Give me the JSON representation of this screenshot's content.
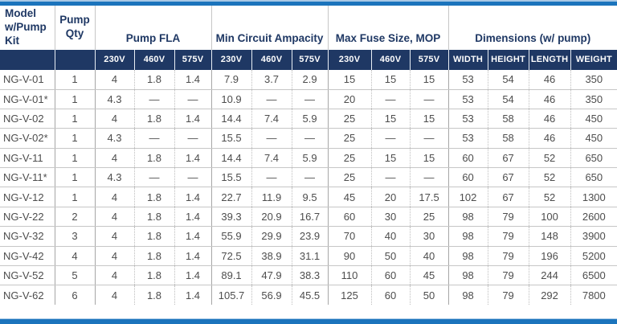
{
  "colors": {
    "header_navy": "#1f3864",
    "accent_bar_blue": "#1b74bc",
    "accent_bar_light": "#a9c9e6",
    "data_text": "#4d4d4d"
  },
  "table": {
    "header": {
      "model": "Model w/Pump Kit",
      "qty": "Pump Qty",
      "groups": [
        {
          "label": "Pump FLA",
          "sub": [
            "230V",
            "460V",
            "575V"
          ]
        },
        {
          "label": "Min Circuit Ampacity",
          "sub": [
            "230V",
            "460V",
            "575V"
          ]
        },
        {
          "label": "Max Fuse Size, MOP",
          "sub": [
            "230V",
            "460V",
            "575V"
          ]
        },
        {
          "label": "Dimensions (w/ pump)",
          "sub": [
            "WIDTH",
            "HEIGHT",
            "LENGTH",
            "WEIGHT"
          ]
        }
      ]
    },
    "rows": [
      {
        "model": "NG-V-01",
        "qty": "1",
        "fla": [
          "4",
          "1.8",
          "1.4"
        ],
        "mca": [
          "7.9",
          "3.7",
          "2.9"
        ],
        "mop": [
          "15",
          "15",
          "15"
        ],
        "dims": [
          "53",
          "54",
          "46",
          "350"
        ]
      },
      {
        "model": "NG-V-01*",
        "qty": "1",
        "fla": [
          "4.3",
          "—",
          "—"
        ],
        "mca": [
          "10.9",
          "—",
          "—"
        ],
        "mop": [
          "20",
          "—",
          "—"
        ],
        "dims": [
          "53",
          "54",
          "46",
          "350"
        ]
      },
      {
        "model": "NG-V-02",
        "qty": "1",
        "fla": [
          "4",
          "1.8",
          "1.4"
        ],
        "mca": [
          "14.4",
          "7.4",
          "5.9"
        ],
        "mop": [
          "25",
          "15",
          "15"
        ],
        "dims": [
          "53",
          "58",
          "46",
          "450"
        ]
      },
      {
        "model": "NG-V-02*",
        "qty": "1",
        "fla": [
          "4.3",
          "—",
          "—"
        ],
        "mca": [
          "15.5",
          "—",
          "—"
        ],
        "mop": [
          "25",
          "—",
          "—"
        ],
        "dims": [
          "53",
          "58",
          "46",
          "450"
        ]
      },
      {
        "model": "NG-V-11",
        "qty": "1",
        "fla": [
          "4",
          "1.8",
          "1.4"
        ],
        "mca": [
          "14.4",
          "7.4",
          "5.9"
        ],
        "mop": [
          "25",
          "15",
          "15"
        ],
        "dims": [
          "60",
          "67",
          "52",
          "650"
        ]
      },
      {
        "model": "NG-V-11*",
        "qty": "1",
        "fla": [
          "4.3",
          "—",
          "—"
        ],
        "mca": [
          "15.5",
          "—",
          "—"
        ],
        "mop": [
          "25",
          "—",
          "—"
        ],
        "dims": [
          "60",
          "67",
          "52",
          "650"
        ]
      },
      {
        "model": "NG-V-12",
        "qty": "1",
        "fla": [
          "4",
          "1.8",
          "1.4"
        ],
        "mca": [
          "22.7",
          "11.9",
          "9.5"
        ],
        "mop": [
          "45",
          "20",
          "17.5"
        ],
        "dims": [
          "102",
          "67",
          "52",
          "1300"
        ]
      },
      {
        "model": "NG-V-22",
        "qty": "2",
        "fla": [
          "4",
          "1.8",
          "1.4"
        ],
        "mca": [
          "39.3",
          "20.9",
          "16.7"
        ],
        "mop": [
          "60",
          "30",
          "25"
        ],
        "dims": [
          "98",
          "79",
          "100",
          "2600"
        ]
      },
      {
        "model": "NG-V-32",
        "qty": "3",
        "fla": [
          "4",
          "1.8",
          "1.4"
        ],
        "mca": [
          "55.9",
          "29.9",
          "23.9"
        ],
        "mop": [
          "70",
          "40",
          "30"
        ],
        "dims": [
          "98",
          "79",
          "148",
          "3900"
        ]
      },
      {
        "model": "NG-V-42",
        "qty": "4",
        "fla": [
          "4",
          "1.8",
          "1.4"
        ],
        "mca": [
          "72.5",
          "38.9",
          "31.1"
        ],
        "mop": [
          "90",
          "50",
          "40"
        ],
        "dims": [
          "98",
          "79",
          "196",
          "5200"
        ]
      },
      {
        "model": "NG-V-52",
        "qty": "5",
        "fla": [
          "4",
          "1.8",
          "1.4"
        ],
        "mca": [
          "89.1",
          "47.9",
          "38.3"
        ],
        "mop": [
          "110",
          "60",
          "45"
        ],
        "dims": [
          "98",
          "79",
          "244",
          "6500"
        ]
      },
      {
        "model": "NG-V-62",
        "qty": "6",
        "fla": [
          "4",
          "1.8",
          "1.4"
        ],
        "mca": [
          "105.7",
          "56.9",
          "45.5"
        ],
        "mop": [
          "125",
          "60",
          "50"
        ],
        "dims": [
          "98",
          "79",
          "292",
          "7800"
        ]
      }
    ]
  }
}
